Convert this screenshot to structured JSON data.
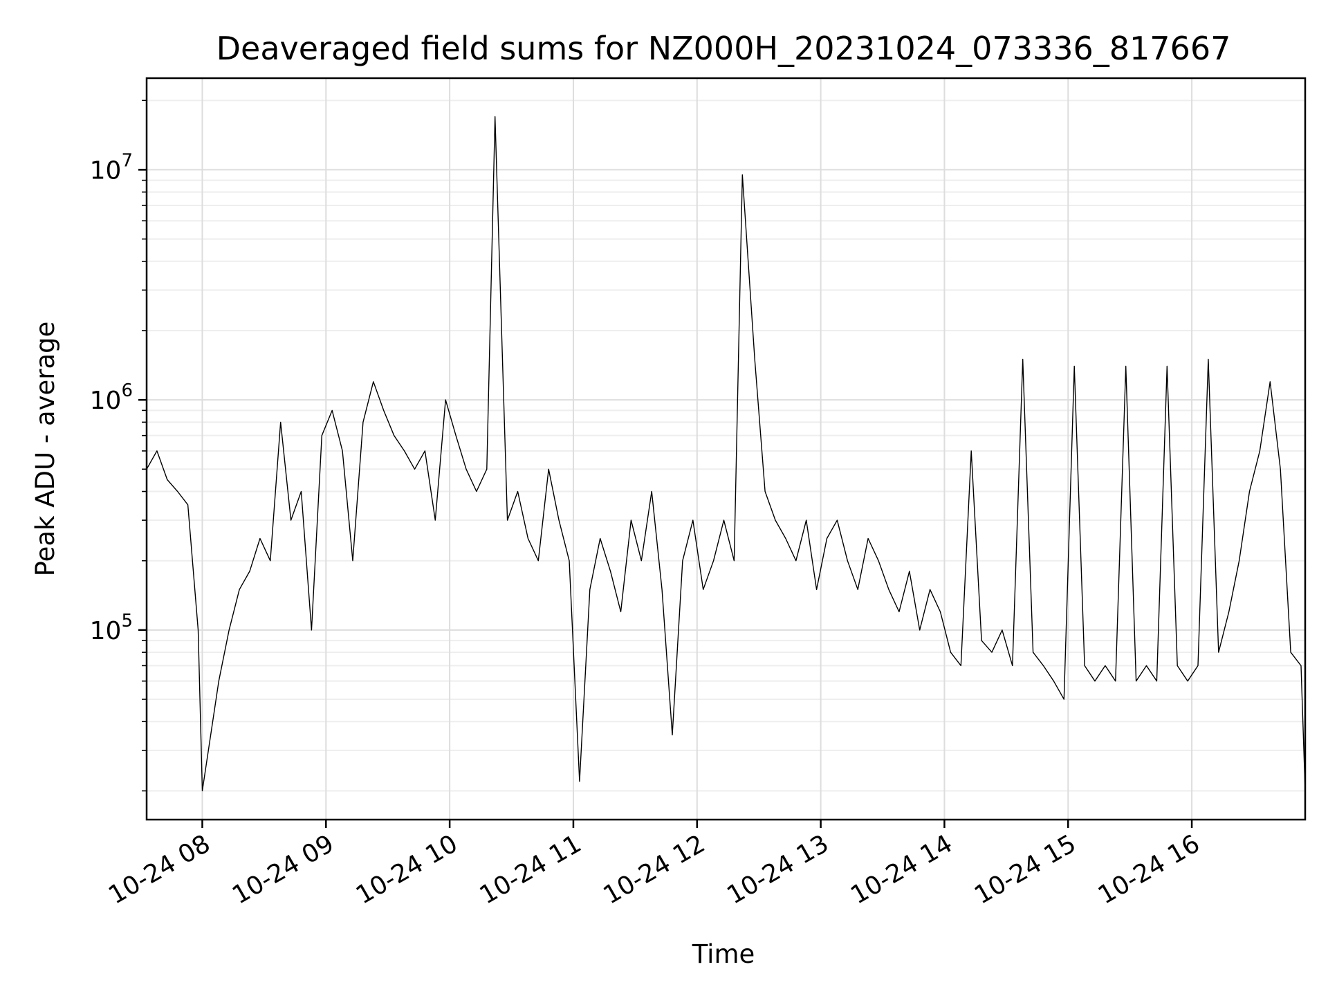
{
  "chart_data": {
    "type": "line",
    "title": "Deaveraged field sums for NZ000H_20231024_073336_817667",
    "xlabel": "Time",
    "ylabel": "Peak ADU - average",
    "yscale": "log",
    "xlim": [
      "2023-10-24 07:33",
      "2023-10-24 16:55"
    ],
    "ylim": [
      15000,
      25000000
    ],
    "grid": true,
    "line_color": "#000000",
    "x_ticks": [
      {
        "label": "10-24 08",
        "value": "2023-10-24 08:00"
      },
      {
        "label": "10-24 09",
        "value": "2023-10-24 09:00"
      },
      {
        "label": "10-24 10",
        "value": "2023-10-24 10:00"
      },
      {
        "label": "10-24 11",
        "value": "2023-10-24 11:00"
      },
      {
        "label": "10-24 12",
        "value": "2023-10-24 12:00"
      },
      {
        "label": "10-24 13",
        "value": "2023-10-24 13:00"
      },
      {
        "label": "10-24 14",
        "value": "2023-10-24 14:00"
      },
      {
        "label": "10-24 15",
        "value": "2023-10-24 15:00"
      },
      {
        "label": "10-24 16",
        "value": "2023-10-24 16:00"
      }
    ],
    "y_ticks": [
      {
        "base": "10",
        "exp": "5",
        "value": 100000
      },
      {
        "base": "10",
        "exp": "6",
        "value": 1000000
      },
      {
        "base": "10",
        "exp": "7",
        "value": 10000000
      }
    ],
    "series": [
      {
        "x": [
          "2023-10-24 07:33",
          "2023-10-24 07:38",
          "2023-10-24 07:43",
          "2023-10-24 07:48",
          "2023-10-24 07:53",
          "2023-10-24 07:58",
          "2023-10-24 08:00",
          "2023-10-24 08:08",
          "2023-10-24 08:13",
          "2023-10-24 08:18",
          "2023-10-24 08:23",
          "2023-10-24 08:28",
          "2023-10-24 08:33",
          "2023-10-24 08:38",
          "2023-10-24 08:43",
          "2023-10-24 08:48",
          "2023-10-24 08:53",
          "2023-10-24 08:58",
          "2023-10-24 09:03",
          "2023-10-24 09:08",
          "2023-10-24 09:13",
          "2023-10-24 09:18",
          "2023-10-24 09:23",
          "2023-10-24 09:28",
          "2023-10-24 09:33",
          "2023-10-24 09:38",
          "2023-10-24 09:43",
          "2023-10-24 09:48",
          "2023-10-24 09:53",
          "2023-10-24 09:58",
          "2023-10-24 10:03",
          "2023-10-24 10:08",
          "2023-10-24 10:13",
          "2023-10-24 10:18",
          "2023-10-24 10:22",
          "2023-10-24 10:28",
          "2023-10-24 10:33",
          "2023-10-24 10:38",
          "2023-10-24 10:43",
          "2023-10-24 10:48",
          "2023-10-24 10:53",
          "2023-10-24 10:58",
          "2023-10-24 11:03",
          "2023-10-24 11:08",
          "2023-10-24 11:13",
          "2023-10-24 11:18",
          "2023-10-24 11:23",
          "2023-10-24 11:28",
          "2023-10-24 11:33",
          "2023-10-24 11:38",
          "2023-10-24 11:43",
          "2023-10-24 11:48",
          "2023-10-24 11:53",
          "2023-10-24 11:58",
          "2023-10-24 12:03",
          "2023-10-24 12:08",
          "2023-10-24 12:13",
          "2023-10-24 12:18",
          "2023-10-24 12:22",
          "2023-10-24 12:28",
          "2023-10-24 12:33",
          "2023-10-24 12:38",
          "2023-10-24 12:43",
          "2023-10-24 12:48",
          "2023-10-24 12:53",
          "2023-10-24 12:58",
          "2023-10-24 13:03",
          "2023-10-24 13:08",
          "2023-10-24 13:13",
          "2023-10-24 13:18",
          "2023-10-24 13:23",
          "2023-10-24 13:28",
          "2023-10-24 13:33",
          "2023-10-24 13:38",
          "2023-10-24 13:43",
          "2023-10-24 13:48",
          "2023-10-24 13:53",
          "2023-10-24 13:58",
          "2023-10-24 14:03",
          "2023-10-24 14:08",
          "2023-10-24 14:13",
          "2023-10-24 14:18",
          "2023-10-24 14:23",
          "2023-10-24 14:28",
          "2023-10-24 14:33",
          "2023-10-24 14:38",
          "2023-10-24 14:43",
          "2023-10-24 14:48",
          "2023-10-24 14:53",
          "2023-10-24 14:58",
          "2023-10-24 15:03",
          "2023-10-24 15:08",
          "2023-10-24 15:13",
          "2023-10-24 15:18",
          "2023-10-24 15:23",
          "2023-10-24 15:28",
          "2023-10-24 15:33",
          "2023-10-24 15:38",
          "2023-10-24 15:43",
          "2023-10-24 15:48",
          "2023-10-24 15:53",
          "2023-10-24 15:58",
          "2023-10-24 16:03",
          "2023-10-24 16:08",
          "2023-10-24 16:13",
          "2023-10-24 16:18",
          "2023-10-24 16:23",
          "2023-10-24 16:28",
          "2023-10-24 16:33",
          "2023-10-24 16:38",
          "2023-10-24 16:43",
          "2023-10-24 16:48",
          "2023-10-24 16:53",
          "2023-10-24 16:55"
        ],
        "y": [
          500000,
          600000,
          450000,
          400000,
          350000,
          100000,
          20000,
          60000,
          100000,
          150000,
          180000,
          250000,
          200000,
          800000,
          300000,
          400000,
          100000,
          700000,
          900000,
          600000,
          200000,
          800000,
          1200000,
          900000,
          700000,
          600000,
          500000,
          600000,
          300000,
          1000000,
          700000,
          500000,
          400000,
          500000,
          17000000,
          300000,
          400000,
          250000,
          200000,
          500000,
          300000,
          200000,
          22000,
          150000,
          250000,
          180000,
          120000,
          300000,
          200000,
          400000,
          150000,
          35000,
          200000,
          300000,
          150000,
          200000,
          300000,
          200000,
          9500000,
          1500000,
          400000,
          300000,
          250000,
          200000,
          300000,
          150000,
          250000,
          300000,
          200000,
          150000,
          250000,
          200000,
          150000,
          120000,
          180000,
          100000,
          150000,
          120000,
          80000,
          70000,
          600000,
          90000,
          80000,
          100000,
          70000,
          1500000,
          80000,
          70000,
          60000,
          50000,
          1400000,
          70000,
          60000,
          70000,
          60000,
          1400000,
          60000,
          70000,
          60000,
          1400000,
          70000,
          60000,
          70000,
          1500000,
          80000,
          120000,
          200000,
          400000,
          600000,
          1200000,
          500000,
          80000,
          70000,
          20000
        ]
      }
    ]
  }
}
